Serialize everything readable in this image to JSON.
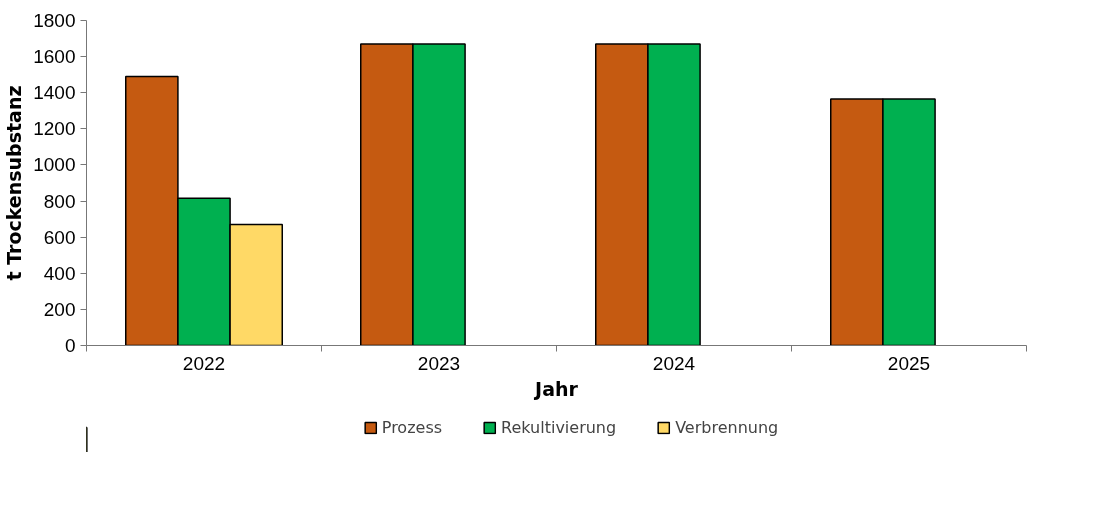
{
  "chart_data": {
    "type": "bar",
    "xlabel": "Jahr",
    "ylabel": "t Trockensubstanz",
    "categories": [
      "2022",
      "2023",
      "2024",
      "2025"
    ],
    "series": [
      {
        "name": "Prozess",
        "color": "#c55a11",
        "values": [
          1490,
          1670,
          1670,
          1365
        ]
      },
      {
        "name": "Rekultivierung",
        "color": "#00b050",
        "values": [
          815,
          1670,
          1670,
          1365
        ]
      },
      {
        "name": "Verbrennung",
        "color": "#ffd966",
        "values": [
          670,
          null,
          null,
          null
        ]
      }
    ],
    "ylim": [
      0,
      1800
    ],
    "yticks": [
      0,
      200,
      400,
      600,
      800,
      1000,
      1200,
      1400,
      1600,
      1800
    ],
    "grid": false,
    "legend": "bottom"
  }
}
